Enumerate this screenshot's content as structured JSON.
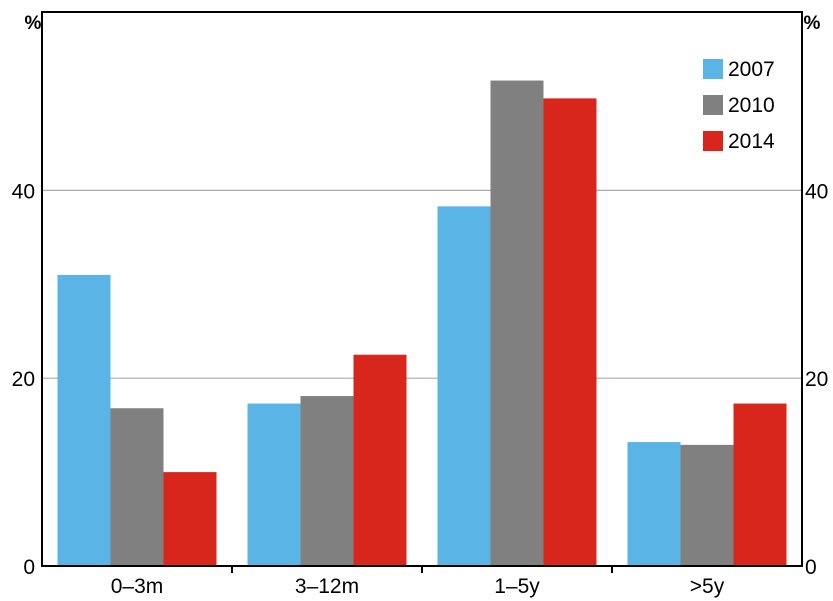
{
  "chart_data": {
    "type": "bar",
    "title": "",
    "xlabel": "",
    "ylabel": "%",
    "ylabel_right": "%",
    "categories": [
      "0–3m",
      "3–12m",
      "1–5y",
      ">5y"
    ],
    "series": [
      {
        "name": "2007",
        "color": "#5ab4e5",
        "values": [
          31,
          17.3,
          38.3,
          13.2
        ]
      },
      {
        "name": "2010",
        "color": "#808080",
        "values": [
          16.8,
          18.1,
          51.7,
          12.9
        ]
      },
      {
        "name": "2014",
        "color": "#d9261c",
        "values": [
          10,
          22.5,
          49.8,
          17.3
        ]
      }
    ],
    "ylim": [
      0,
      59
    ],
    "yticks": [
      "0",
      "20",
      "40"
    ],
    "ytick_values": [
      0,
      20,
      40
    ],
    "gridlines": [
      20,
      40
    ],
    "grid": true,
    "legend_position": "top-right"
  }
}
